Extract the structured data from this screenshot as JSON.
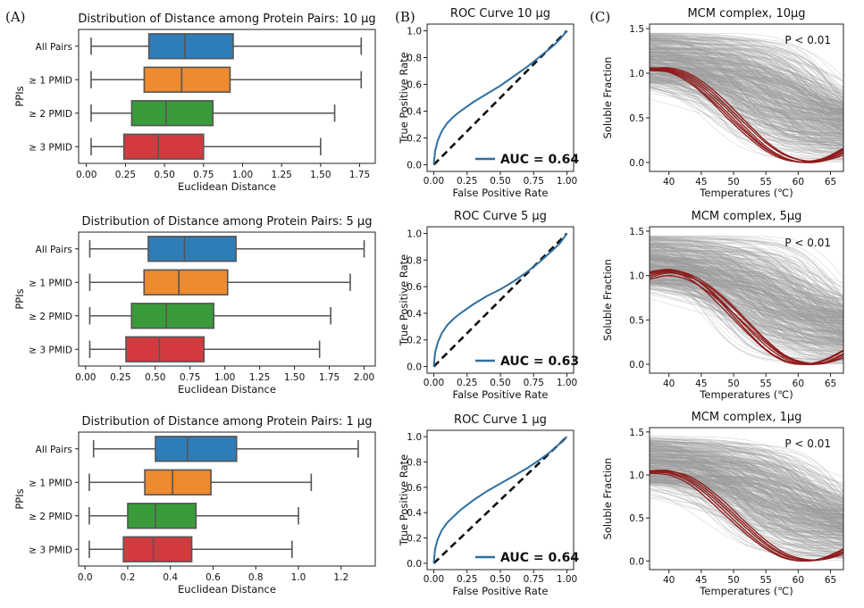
{
  "panel_letters": [
    "(A)",
    "(B)",
    "(C)"
  ],
  "colors": {
    "all_pairs": "#2f7db8",
    "pmid1": "#ee8a2f",
    "pmid2": "#3a9b3a",
    "pmid3": "#d33a3f",
    "roc": "#2f6f9f",
    "cloud": "#9a9a9a",
    "mcm": "#8e1b1b"
  },
  "chart_data": [
    {
      "type": "box",
      "panel": "A",
      "title": "Distribution of Distance among Protein Pairs: 10 μg",
      "xlabel": "Euclidean Distance",
      "ylabel": "PPIs",
      "xlim": [
        -0.05,
        1.85
      ],
      "xticks": [
        "0.00",
        "0.25",
        "0.50",
        "0.75",
        "1.00",
        "1.25",
        "1.50",
        "1.75"
      ],
      "categories": [
        "All Pairs",
        "≥ 1 PMID",
        "≥ 2 PMID",
        "≥ 3 PMID"
      ],
      "series": [
        {
          "whislo": 0.03,
          "q1": 0.4,
          "med": 0.63,
          "q3": 0.94,
          "whishi": 1.76
        },
        {
          "whislo": 0.03,
          "q1": 0.37,
          "med": 0.61,
          "q3": 0.92,
          "whishi": 1.76
        },
        {
          "whislo": 0.03,
          "q1": 0.29,
          "med": 0.51,
          "q3": 0.81,
          "whishi": 1.59
        },
        {
          "whislo": 0.03,
          "q1": 0.24,
          "med": 0.46,
          "q3": 0.75,
          "whishi": 1.5
        }
      ]
    },
    {
      "type": "box",
      "panel": "A",
      "title": "Distribution of Distance among Protein Pairs: 5 μg",
      "xlabel": "Euclidean Distance",
      "ylabel": "PPIs",
      "xlim": [
        -0.05,
        2.08
      ],
      "xticks": [
        "0.00",
        "0.25",
        "0.50",
        "0.75",
        "1.00",
        "1.25",
        "1.50",
        "1.75",
        "2.00"
      ],
      "categories": [
        "All Pairs",
        "≥ 1 PMID",
        "≥ 2 PMID",
        "≥ 3 PMID"
      ],
      "series": [
        {
          "whislo": 0.03,
          "q1": 0.45,
          "med": 0.71,
          "q3": 1.08,
          "whishi": 2.0
        },
        {
          "whislo": 0.03,
          "q1": 0.42,
          "med": 0.67,
          "q3": 1.02,
          "whishi": 1.9
        },
        {
          "whislo": 0.03,
          "q1": 0.33,
          "med": 0.58,
          "q3": 0.92,
          "whishi": 1.76
        },
        {
          "whislo": 0.03,
          "q1": 0.29,
          "med": 0.53,
          "q3": 0.85,
          "whishi": 1.68
        }
      ]
    },
    {
      "type": "box",
      "panel": "A",
      "title": "Distribution of Distance among Protein Pairs: 1 μg",
      "xlabel": "Euclidean Distance",
      "ylabel": "PPIs",
      "xlim": [
        -0.03,
        1.36
      ],
      "xticks": [
        "0.0",
        "0.2",
        "0.4",
        "0.6",
        "0.8",
        "1.0",
        "1.2"
      ],
      "categories": [
        "All Pairs",
        "≥ 1 PMID",
        "≥ 2 PMID",
        "≥ 3 PMID"
      ],
      "series": [
        {
          "whislo": 0.04,
          "q1": 0.33,
          "med": 0.48,
          "q3": 0.71,
          "whishi": 1.28
        },
        {
          "whislo": 0.02,
          "q1": 0.28,
          "med": 0.41,
          "q3": 0.59,
          "whishi": 1.06
        },
        {
          "whislo": 0.02,
          "q1": 0.2,
          "med": 0.33,
          "q3": 0.52,
          "whishi": 1.0
        },
        {
          "whislo": 0.02,
          "q1": 0.18,
          "med": 0.32,
          "q3": 0.5,
          "whishi": 0.97
        }
      ]
    },
    {
      "type": "line",
      "panel": "B",
      "title": "ROC Curve  10 μg",
      "xlabel": "False Positive Rate",
      "ylabel": "True Positive Rate",
      "xlim": [
        -0.05,
        1.05
      ],
      "ylim": [
        -0.05,
        1.05
      ],
      "xticks": [
        "0.00",
        "0.25",
        "0.50",
        "0.75",
        "1.00"
      ],
      "yticks": [
        "0.0",
        "0.2",
        "0.4",
        "0.6",
        "0.8",
        "1.0"
      ],
      "legend": "AUC = 0.64",
      "x": [
        0,
        0.01,
        0.03,
        0.06,
        0.1,
        0.15,
        0.2,
        0.3,
        0.4,
        0.5,
        0.6,
        0.7,
        0.8,
        0.9,
        0.95,
        1.0
      ],
      "y": [
        0,
        0.1,
        0.18,
        0.25,
        0.31,
        0.36,
        0.4,
        0.47,
        0.53,
        0.59,
        0.66,
        0.73,
        0.81,
        0.89,
        0.94,
        1.0
      ]
    },
    {
      "type": "line",
      "panel": "B",
      "title": "ROC Curve   5 μg",
      "xlabel": "False Positive Rate",
      "ylabel": "True Positive Rate",
      "xlim": [
        -0.05,
        1.05
      ],
      "ylim": [
        -0.05,
        1.05
      ],
      "xticks": [
        "0.00",
        "0.25",
        "0.50",
        "0.75",
        "1.00"
      ],
      "yticks": [
        "0.0",
        "0.2",
        "0.4",
        "0.6",
        "0.8",
        "1.0"
      ],
      "legend": "AUC = 0.63",
      "x": [
        0,
        0.01,
        0.03,
        0.06,
        0.1,
        0.15,
        0.2,
        0.3,
        0.4,
        0.5,
        0.6,
        0.7,
        0.8,
        0.9,
        0.95,
        1.0
      ],
      "y": [
        0,
        0.1,
        0.18,
        0.25,
        0.31,
        0.36,
        0.4,
        0.47,
        0.53,
        0.58,
        0.64,
        0.71,
        0.79,
        0.88,
        0.93,
        1.0
      ]
    },
    {
      "type": "line",
      "panel": "B",
      "title": "ROC Curve   1 μg",
      "xlabel": "False Positive Rate",
      "ylabel": "True Positive Rate",
      "xlim": [
        -0.05,
        1.05
      ],
      "ylim": [
        -0.05,
        1.05
      ],
      "xticks": [
        "0.00",
        "0.25",
        "0.50",
        "0.75",
        "1.00"
      ],
      "yticks": [
        "0.0",
        "0.2",
        "0.4",
        "0.6",
        "0.8",
        "1.0"
      ],
      "legend": "AUC = 0.64",
      "x": [
        0,
        0.01,
        0.03,
        0.06,
        0.1,
        0.15,
        0.2,
        0.3,
        0.4,
        0.5,
        0.6,
        0.7,
        0.8,
        0.9,
        0.95,
        1.0
      ],
      "y": [
        0,
        0.11,
        0.19,
        0.26,
        0.32,
        0.37,
        0.42,
        0.5,
        0.57,
        0.63,
        0.69,
        0.75,
        0.82,
        0.9,
        0.95,
        1.0
      ]
    },
    {
      "type": "line",
      "panel": "C",
      "title": "MCM complex, 10μg",
      "xlabel": "Temperatures (℃)",
      "ylabel": "Soluble Fraction",
      "annotation": "P < 0.01",
      "xlim": [
        37,
        67
      ],
      "ylim": [
        -0.1,
        1.55
      ],
      "xticks": [
        "40",
        "45",
        "50",
        "55",
        "60",
        "65"
      ],
      "yticks": [
        "0.0",
        "0.5",
        "1.0",
        "1.5"
      ],
      "temperatures": [
        37,
        40,
        43,
        46,
        49,
        52,
        55,
        58,
        61,
        64,
        67
      ],
      "mcm_curves": [
        [
          1.05,
          1.04,
          0.96,
          0.8,
          0.6,
          0.38,
          0.18,
          0.05,
          0.0,
          0.02,
          0.12
        ],
        [
          1.04,
          1.03,
          0.94,
          0.77,
          0.56,
          0.35,
          0.16,
          0.04,
          0.0,
          0.03,
          0.14
        ],
        [
          1.06,
          1.05,
          0.98,
          0.83,
          0.63,
          0.42,
          0.22,
          0.08,
          0.02,
          0.03,
          0.1
        ],
        [
          1.03,
          1.01,
          0.9,
          0.72,
          0.5,
          0.3,
          0.13,
          0.03,
          0.01,
          0.05,
          0.16
        ],
        [
          1.05,
          1.06,
          1.0,
          0.86,
          0.67,
          0.45,
          0.24,
          0.09,
          0.02,
          0.02,
          0.08
        ],
        [
          1.04,
          1.02,
          0.92,
          0.74,
          0.53,
          0.33,
          0.15,
          0.04,
          0.0,
          0.04,
          0.15
        ]
      ]
    },
    {
      "type": "line",
      "panel": "C",
      "title": "MCM complex, 5μg",
      "xlabel": "Temperatures (℃)",
      "ylabel": "Soluble Fraction",
      "annotation": "P < 0.01",
      "xlim": [
        37,
        67
      ],
      "ylim": [
        -0.1,
        1.55
      ],
      "xticks": [
        "40",
        "45",
        "50",
        "55",
        "60",
        "65"
      ],
      "yticks": [
        "0.0",
        "0.5",
        "1.0",
        "1.5"
      ],
      "temperatures": [
        37,
        40,
        43,
        46,
        49,
        52,
        55,
        58,
        61,
        64,
        67
      ],
      "mcm_curves": [
        [
          1.02,
          1.05,
          1.0,
          0.86,
          0.65,
          0.42,
          0.21,
          0.06,
          0.0,
          0.02,
          0.12
        ],
        [
          0.98,
          1.03,
          0.99,
          0.88,
          0.7,
          0.48,
          0.26,
          0.09,
          0.01,
          0.01,
          0.09
        ],
        [
          1.04,
          1.07,
          1.01,
          0.85,
          0.62,
          0.38,
          0.17,
          0.04,
          0.0,
          0.04,
          0.15
        ],
        [
          0.96,
          1.0,
          0.95,
          0.82,
          0.64,
          0.44,
          0.24,
          0.08,
          0.01,
          0.02,
          0.11
        ],
        [
          1.03,
          1.06,
          1.02,
          0.9,
          0.72,
          0.5,
          0.28,
          0.1,
          0.02,
          0.01,
          0.07
        ],
        [
          1.0,
          1.04,
          0.97,
          0.8,
          0.58,
          0.36,
          0.16,
          0.03,
          0.0,
          0.05,
          0.16
        ]
      ]
    },
    {
      "type": "line",
      "panel": "C",
      "title": "MCM complex, 1μg",
      "xlabel": "Temperatures (℃)",
      "ylabel": "Soluble Fraction",
      "annotation": "P < 0.01",
      "xlim": [
        37,
        67
      ],
      "ylim": [
        -0.1,
        1.55
      ],
      "xticks": [
        "40",
        "45",
        "50",
        "55",
        "60",
        "65"
      ],
      "yticks": [
        "0.0",
        "0.5",
        "1.0",
        "1.5"
      ],
      "temperatures": [
        37,
        40,
        43,
        46,
        49,
        52,
        55,
        58,
        61,
        64,
        67
      ],
      "mcm_curves": [
        [
          1.04,
          1.03,
          0.95,
          0.79,
          0.59,
          0.38,
          0.19,
          0.06,
          0.01,
          0.02,
          0.11
        ],
        [
          1.03,
          1.02,
          0.93,
          0.76,
          0.55,
          0.34,
          0.16,
          0.04,
          0.0,
          0.03,
          0.13
        ],
        [
          1.05,
          1.05,
          0.97,
          0.82,
          0.62,
          0.41,
          0.21,
          0.07,
          0.01,
          0.02,
          0.1
        ],
        [
          1.02,
          1.0,
          0.9,
          0.72,
          0.51,
          0.31,
          0.14,
          0.03,
          0.0,
          0.04,
          0.14
        ],
        [
          1.04,
          1.04,
          0.99,
          0.85,
          0.66,
          0.44,
          0.24,
          0.09,
          0.02,
          0.02,
          0.08
        ]
      ]
    }
  ]
}
